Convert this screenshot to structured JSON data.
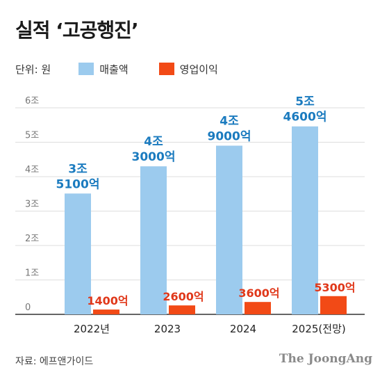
{
  "title": "실적 ‘고공행진’",
  "legend": {
    "unit": "단위: 원",
    "items": [
      {
        "label": "매출액",
        "color": "#9ccbee"
      },
      {
        "label": "영업이익",
        "color": "#f24a16"
      }
    ]
  },
  "source": "자료: 에프앤가이드",
  "brand": "The JoongAng",
  "chart_data": {
    "type": "bar",
    "categories": [
      "2022년",
      "2023",
      "2024",
      "2025(전망)"
    ],
    "series": [
      {
        "name": "매출액",
        "color": "#9ccbee",
        "label_color": "#1b7bbf",
        "values": [
          3.51,
          4.3,
          4.9,
          5.46
        ],
        "labels": [
          [
            "3조",
            "5100억"
          ],
          [
            "4조",
            "3000억"
          ],
          [
            "4조",
            "9000억"
          ],
          [
            "5조",
            "4600억"
          ]
        ]
      },
      {
        "name": "영업이익",
        "color": "#f24a16",
        "label_color": "#e0381a",
        "values": [
          0.14,
          0.26,
          0.36,
          0.53
        ],
        "labels": [
          [
            "1400억"
          ],
          [
            "2600억"
          ],
          [
            "3600억"
          ],
          [
            "5300억"
          ]
        ]
      }
    ],
    "y_ticks": [
      "0",
      "1조",
      "2조",
      "3조",
      "4조",
      "5조",
      "6조"
    ],
    "ylim": [
      0,
      6
    ],
    "grid": true
  }
}
